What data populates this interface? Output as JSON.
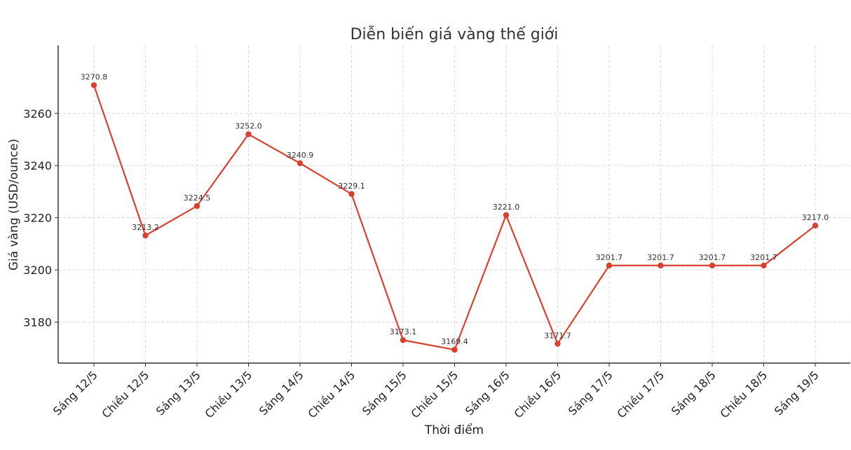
{
  "chart_data": {
    "type": "line",
    "title": "Diễn biến giá vàng thế giới",
    "xlabel": "Thời điểm",
    "ylabel": "Giá vàng (USD/ounce)",
    "categories": [
      "Sáng 12/5",
      "Chiều 12/5",
      "Sáng 13/5",
      "Chiều 13/5",
      "Sáng 14/5",
      "Chiều 14/5",
      "Sáng 15/5",
      "Chiều 15/5",
      "Sáng 16/5",
      "Chiều 16/5",
      "Sáng 17/5",
      "Chiều 17/5",
      "Sáng 18/5",
      "Chiều 18/5",
      "Sáng 19/5"
    ],
    "values": [
      3270.8,
      3213.2,
      3224.5,
      3252.0,
      3240.9,
      3229.1,
      3173.1,
      3169.4,
      3221.0,
      3171.7,
      3201.7,
      3201.7,
      3201.7,
      3201.7,
      3217.0
    ],
    "data_labels": [
      "3270.8",
      "3213.2",
      "3224.5",
      "3252.0",
      "3240.9",
      "3229.1",
      "3173.1",
      "3169.4",
      "3221.0",
      "3171.7",
      "3201.7",
      "3201.7",
      "3201.7",
      "3201.7",
      "3217.0"
    ],
    "yticks": [
      3180,
      3200,
      3220,
      3240,
      3260
    ],
    "ylim": [
      3164.3,
      3286.0
    ],
    "grid": true,
    "legend": false,
    "line_color": "#d9412e"
  }
}
